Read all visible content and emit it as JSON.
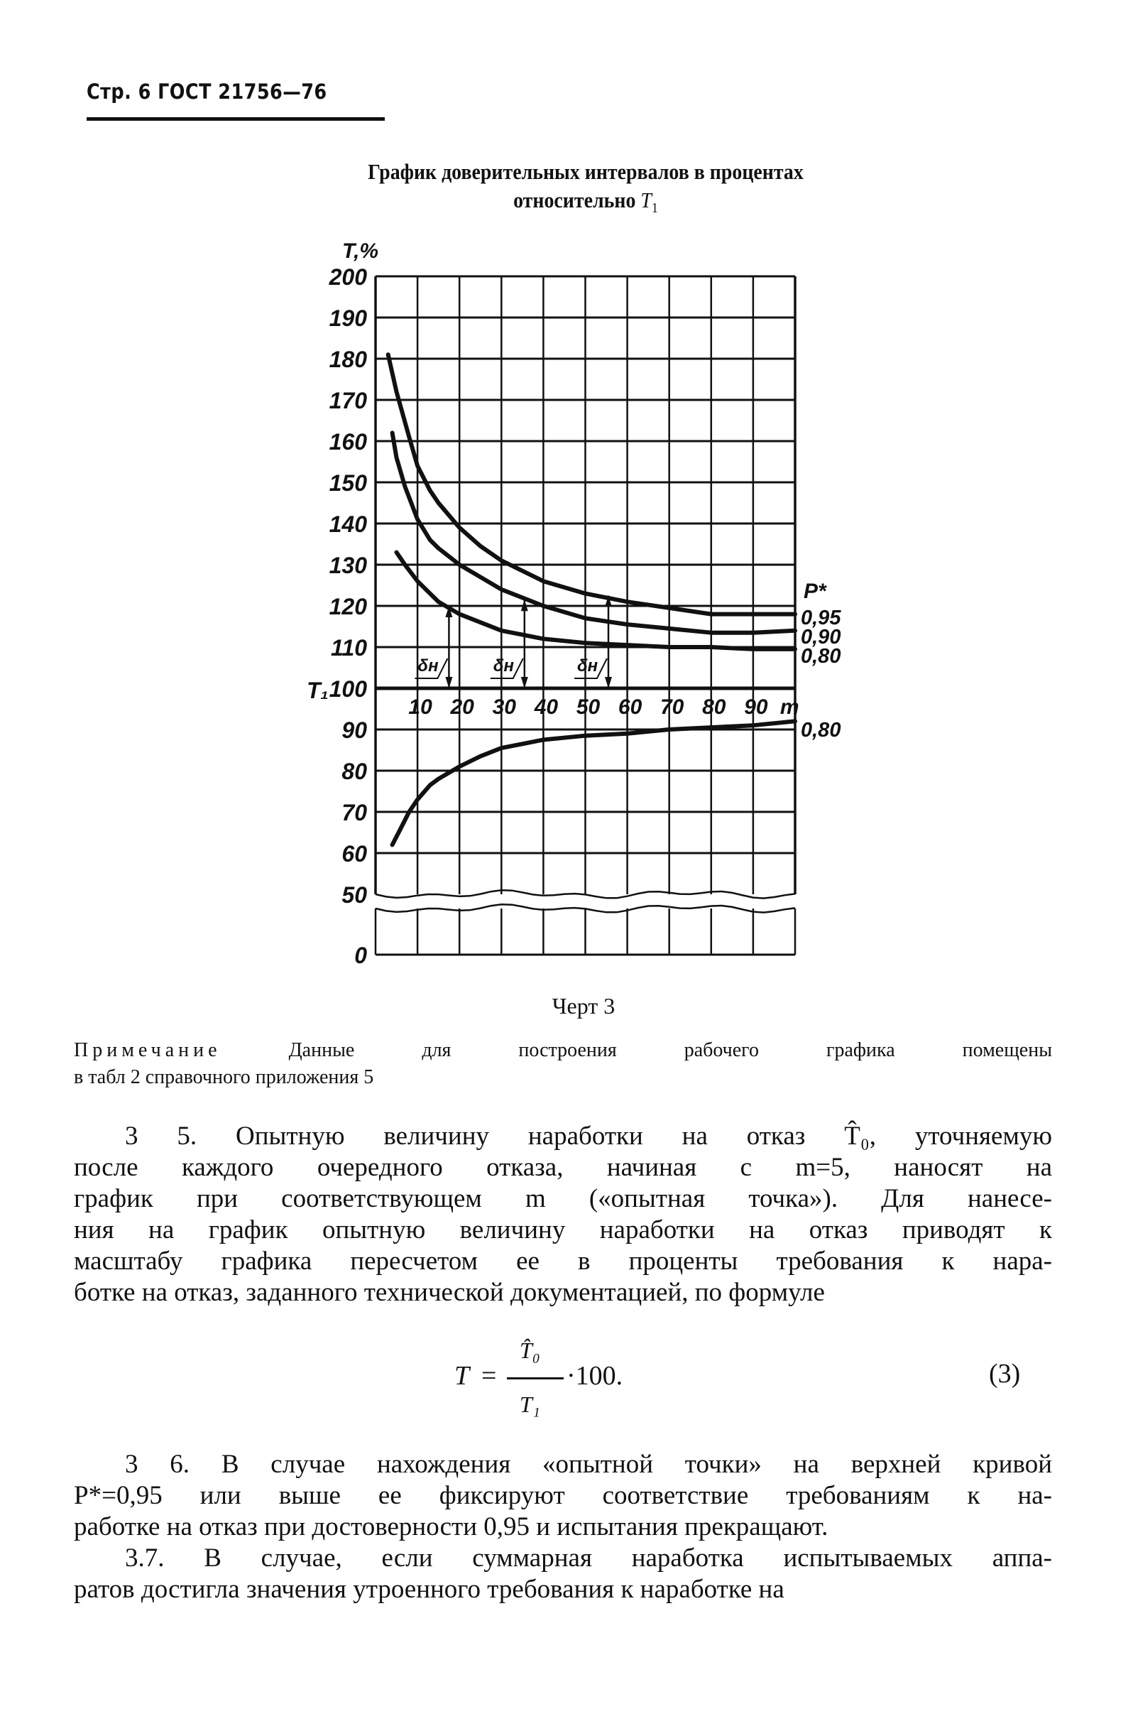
{
  "header": {
    "page_ref": "Стр. 6 ГОСТ 21756—76"
  },
  "title": {
    "line1": "График доверительных интервалов в процентах",
    "line2": "относительно",
    "symbol": "T",
    "subscript": "1"
  },
  "chart_data": {
    "type": "line",
    "y_axis_label": "T,%",
    "y_ref_label": "T₁",
    "x_axis_label": "m",
    "x_ticks": [
      "10",
      "20",
      "30",
      "40",
      "50",
      "60",
      "70",
      "80",
      "90"
    ],
    "y_ticks_upper": [
      "200",
      "190",
      "180",
      "170",
      "160",
      "150",
      "140",
      "130",
      "120",
      "110",
      "100"
    ],
    "y_ticks_lower": [
      "90",
      "80",
      "70",
      "60",
      "50",
      "0"
    ],
    "xlim": [
      0,
      100
    ],
    "ylim": [
      0,
      200
    ],
    "y_axis_break": [
      50,
      0
    ],
    "grid": true,
    "legend_title": "P*",
    "series": [
      {
        "name": "0,95",
        "points": [
          [
            3,
            181
          ],
          [
            5,
            172
          ],
          [
            8,
            161
          ],
          [
            10,
            154
          ],
          [
            13,
            148
          ],
          [
            15,
            145
          ],
          [
            20,
            139
          ],
          [
            25,
            134.5
          ],
          [
            30,
            131
          ],
          [
            35,
            128.5
          ],
          [
            40,
            126
          ],
          [
            50,
            123
          ],
          [
            60,
            121
          ],
          [
            70,
            119.5
          ],
          [
            80,
            118
          ],
          [
            90,
            118
          ],
          [
            100,
            118
          ]
        ]
      },
      {
        "name": "0,90",
        "points": [
          [
            4,
            162
          ],
          [
            5,
            156
          ],
          [
            7,
            149
          ],
          [
            10,
            141
          ],
          [
            13,
            136
          ],
          [
            15,
            134
          ],
          [
            20,
            130
          ],
          [
            25,
            127
          ],
          [
            30,
            124
          ],
          [
            35,
            122
          ],
          [
            40,
            120
          ],
          [
            50,
            117
          ],
          [
            60,
            115.5
          ],
          [
            70,
            114.5
          ],
          [
            80,
            113.5
          ],
          [
            90,
            113.5
          ],
          [
            100,
            114
          ]
        ]
      },
      {
        "name": "0,80",
        "points": [
          [
            5,
            133
          ],
          [
            7,
            130
          ],
          [
            10,
            126
          ],
          [
            13,
            123
          ],
          [
            15,
            121
          ],
          [
            20,
            118
          ],
          [
            25,
            116
          ],
          [
            30,
            114
          ],
          [
            35,
            113
          ],
          [
            40,
            112
          ],
          [
            50,
            111
          ],
          [
            60,
            110.5
          ],
          [
            70,
            110
          ],
          [
            80,
            110
          ],
          [
            90,
            109.5
          ],
          [
            100,
            109.5
          ]
        ]
      },
      {
        "name": "0,80",
        "points": [
          [
            4,
            62
          ],
          [
            6,
            66
          ],
          [
            8,
            70
          ],
          [
            10,
            73
          ],
          [
            13,
            76.5
          ],
          [
            15,
            78
          ],
          [
            20,
            81
          ],
          [
            25,
            83.5
          ],
          [
            30,
            85.5
          ],
          [
            35,
            86.5
          ],
          [
            40,
            87.5
          ],
          [
            50,
            88.5
          ],
          [
            60,
            89
          ],
          [
            70,
            90
          ],
          [
            80,
            90.5
          ],
          [
            90,
            91
          ],
          [
            100,
            92
          ]
        ]
      }
    ],
    "annotations": [
      {
        "label": "δн",
        "m": 17.5,
        "from": 100,
        "to": 120
      },
      {
        "label": "δн",
        "m": 35.5,
        "from": 100,
        "to": 121.5
      },
      {
        "label": "δн",
        "m": 55.5,
        "from": 100,
        "to": 122.5
      }
    ]
  },
  "figure_caption": "Черт 3",
  "note": {
    "label": "Примечание",
    "lines": [
      "Данные для построения рабочего графика помещены",
      "в табл 2 справочного приложения 5"
    ]
  },
  "para_3_5": {
    "lines": [
      "3 5. Опытную величину наработки на отказ T̂₀, уточняемую",
      "после каждого очередного отказа, начиная с m=5, наносят на",
      "график при соответствующем m («опытная точка»). Для нанесе-",
      "ния на график опытную величину наработки на отказ приводят к",
      "масштабу графика пересчетом ее в проценты требования к нара-",
      "ботке на отказ, заданного технической документацией, по формуле"
    ]
  },
  "formula": {
    "lhs": "T",
    "eq": "=",
    "numerator": "T̂₀",
    "denominator": "T₁",
    "factor": "·100.",
    "number": "(3)"
  },
  "para_3_6": {
    "lines": [
      "3 6. В случае нахождения «опытной точки» на верхней кривой",
      "P*=0,95 или выше ее фиксируют соответствие требованиям к на-",
      "работке на отказ при достоверности 0,95 и испытания прекращают."
    ]
  },
  "para_3_7": {
    "lines": [
      "3.7. В случае, если суммарная наработка испытываемых аппа-",
      "ратов достигла значения утроенного требования к наработке на"
    ]
  }
}
